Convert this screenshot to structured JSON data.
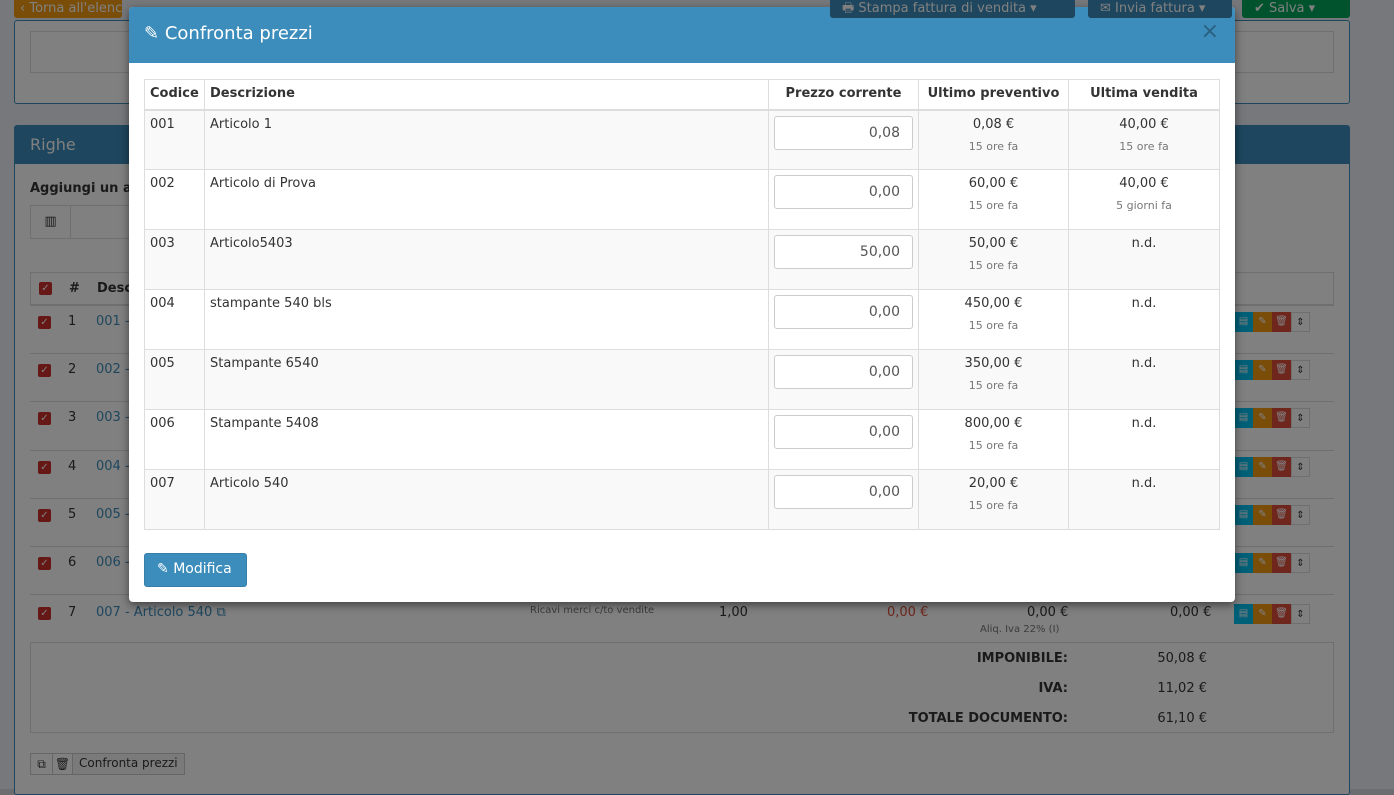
{
  "background": {
    "back_button": "Torna all'elenco",
    "print_button": "Stampa fattura di vendita",
    "send_button": "Invia fattura",
    "save_button": "Salva",
    "panel_title": "Righe",
    "add_label": "Aggiungi un a",
    "table_headers": {
      "num": "#",
      "desc": "Desc"
    },
    "rows": [
      {
        "n": "1",
        "link": "001 -"
      },
      {
        "n": "2",
        "link": "002 -"
      },
      {
        "n": "3",
        "link": "003 -"
      },
      {
        "n": "4",
        "link": "004 -"
      },
      {
        "n": "5",
        "link": "005 -"
      },
      {
        "n": "6",
        "link": "006 -"
      }
    ],
    "row7": {
      "n": "7",
      "link": "007 - Articolo 540",
      "account": "Ricavi merci c/to vendite",
      "qty": "1,00",
      "price": "0,00 €",
      "iva": "0,00 €",
      "iva_note": "Aliq. Iva 22% (I)",
      "total": "0,00 €"
    },
    "totals": [
      {
        "label": "IMPONIBILE:",
        "value": "50,08 €"
      },
      {
        "label": "IVA:",
        "value": "11,02 €"
      },
      {
        "label": "TOTALE DOCUMENTO:",
        "value": "61,10 €"
      }
    ],
    "compare_button": "Confronta prezzi"
  },
  "modal": {
    "title": "Confronta prezzi",
    "close": "×",
    "headers": [
      "Codice",
      "Descrizione",
      "Prezzo corrente",
      "Ultimo preventivo",
      "Ultima vendita"
    ],
    "rows": [
      {
        "code": "001",
        "desc": "Articolo 1",
        "price": "0,08",
        "quote": "0,08 €",
        "quote_when": "15 ore fa",
        "sale": "40,00 €",
        "sale_when": "15 ore fa"
      },
      {
        "code": "002",
        "desc": "Articolo di Prova",
        "price": "0,00",
        "quote": "60,00 €",
        "quote_when": "15 ore fa",
        "sale": "40,00 €",
        "sale_when": "5 giorni fa"
      },
      {
        "code": "003",
        "desc": "Articolo5403",
        "price": "50,00",
        "quote": "50,00 €",
        "quote_when": "15 ore fa",
        "sale": "n.d.",
        "sale_when": ""
      },
      {
        "code": "004",
        "desc": "stampante 540 bls",
        "price": "0,00",
        "quote": "450,00 €",
        "quote_when": "15 ore fa",
        "sale": "n.d.",
        "sale_when": ""
      },
      {
        "code": "005",
        "desc": "Stampante 6540",
        "price": "0,00",
        "quote": "350,00 €",
        "quote_when": "15 ore fa",
        "sale": "n.d.",
        "sale_when": ""
      },
      {
        "code": "006",
        "desc": "Stampante 5408",
        "price": "0,00",
        "quote": "800,00 €",
        "quote_when": "15 ore fa",
        "sale": "n.d.",
        "sale_when": ""
      },
      {
        "code": "007",
        "desc": "Articolo 540",
        "price": "0,00",
        "quote": "20,00 €",
        "quote_when": "15 ore fa",
        "sale": "n.d.",
        "sale_when": ""
      }
    ],
    "submit": "Modifica"
  },
  "colors": {
    "primary": "#3c8dbc",
    "success": "#00a65a",
    "warning": "#f39c12",
    "danger": "#dd4b39"
  }
}
